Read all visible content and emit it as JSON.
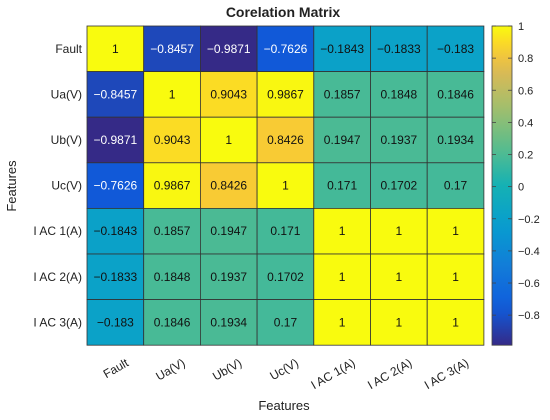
{
  "chart_data": {
    "type": "heatmap",
    "title": "Corelation Matrix",
    "xlabel": "Features",
    "ylabel": "Features",
    "x_categories": [
      "Fault",
      "Ua(V)",
      "Ub(V)",
      "Uc(V)",
      "I AC 1(A)",
      "I AC 2(A)",
      "I AC 3(A)"
    ],
    "y_categories": [
      "Fault",
      "Ua(V)",
      "Ub(V)",
      "Uc(V)",
      "I AC 1(A)",
      "I AC 2(A)",
      "I AC 3(A)"
    ],
    "values": [
      [
        1,
        -0.8457,
        -0.9871,
        -0.7626,
        -0.1843,
        -0.1833,
        -0.183
      ],
      [
        -0.8457,
        1,
        0.9043,
        0.9867,
        0.1857,
        0.1848,
        0.1846
      ],
      [
        -0.9871,
        0.9043,
        1,
        0.8426,
        0.1947,
        0.1937,
        0.1934
      ],
      [
        -0.7626,
        0.9867,
        0.8426,
        1,
        0.171,
        0.1702,
        0.17
      ],
      [
        -0.1843,
        0.1857,
        0.1947,
        0.171,
        1,
        1,
        1
      ],
      [
        -0.1833,
        0.1848,
        0.1937,
        0.1702,
        1,
        1,
        1
      ],
      [
        -0.183,
        0.1846,
        0.1934,
        0.17,
        1,
        1,
        1
      ]
    ],
    "value_labels": [
      [
        "1",
        "−0.8457",
        "−0.9871",
        "−0.7626",
        "−0.1843",
        "−0.1833",
        "−0.183"
      ],
      [
        "−0.8457",
        "1",
        "0.9043",
        "0.9867",
        "0.1857",
        "0.1848",
        "0.1846"
      ],
      [
        "−0.9871",
        "0.9043",
        "1",
        "0.8426",
        "0.1947",
        "0.1937",
        "0.1934"
      ],
      [
        "−0.7626",
        "0.9867",
        "0.8426",
        "1",
        "0.171",
        "0.1702",
        "0.17"
      ],
      [
        "−0.1843",
        "0.1857",
        "0.1947",
        "0.171",
        "1",
        "1",
        "1"
      ],
      [
        "−0.1833",
        "0.1848",
        "0.1937",
        "0.1702",
        "1",
        "1",
        "1"
      ],
      [
        "−0.183",
        "0.1846",
        "0.1934",
        "0.17",
        "1",
        "1",
        "1"
      ]
    ],
    "colormap": "parula",
    "clim": [
      -0.9871,
      1
    ],
    "colorbar_ticks": [
      1,
      0.8,
      0.6,
      0.4,
      0.2,
      0,
      -0.2,
      -0.4,
      -0.6,
      -0.8
    ],
    "colorbar_tick_labels": [
      "1",
      "0.8",
      "0.6",
      "0.4",
      "0.2",
      "0",
      "−0.2",
      "−0.4",
      "−0.6",
      "−0.8"
    ],
    "colorbar_position": "right",
    "grid": true
  }
}
